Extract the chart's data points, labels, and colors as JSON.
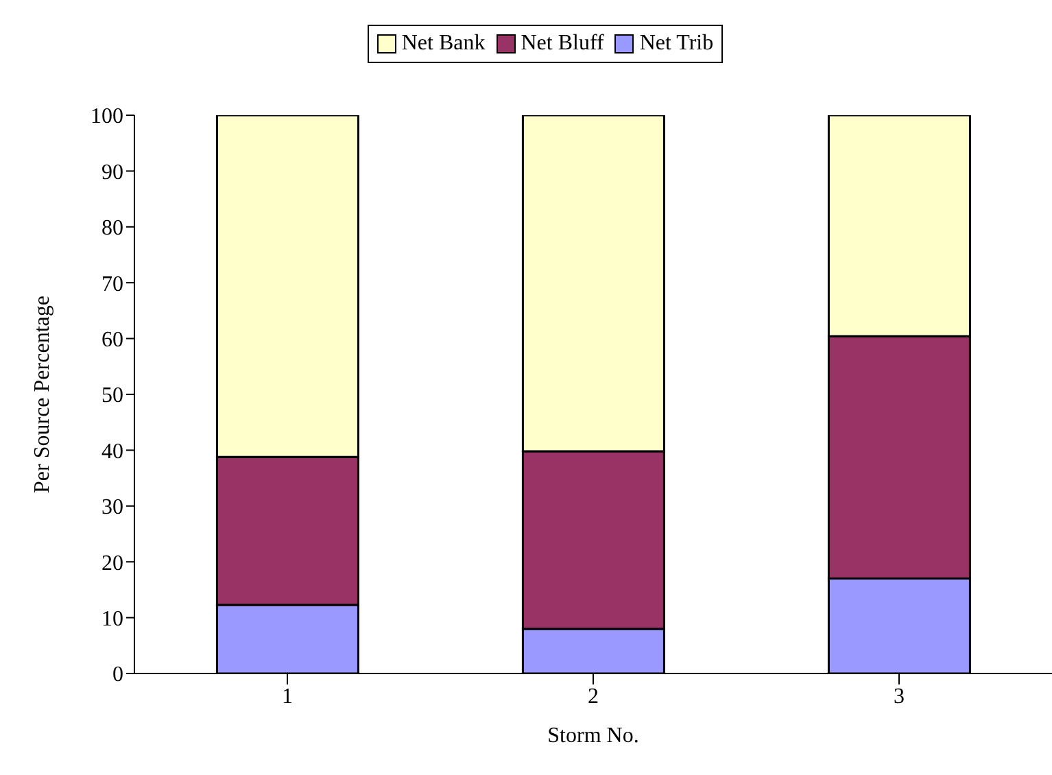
{
  "chart_data": {
    "type": "bar",
    "stacked": true,
    "xlabel": "Storm No.",
    "ylabel": "Per Source Percentage",
    "categories": [
      "1",
      "2",
      "3"
    ],
    "series": [
      {
        "name": "Net Trib",
        "color": "#9999ff",
        "values": [
          12.3,
          8.0,
          17.0
        ]
      },
      {
        "name": "Net Bluff",
        "color": "#993366",
        "values": [
          26.5,
          31.8,
          43.4
        ]
      },
      {
        "name": "Net Bank",
        "color": "#ffffcc",
        "values": [
          61.2,
          60.2,
          39.6
        ]
      }
    ],
    "ylim": [
      0,
      100
    ],
    "yticks": [
      0,
      10,
      20,
      30,
      40,
      50,
      60,
      70,
      80,
      90,
      100
    ],
    "grid": false,
    "legend": "top"
  }
}
